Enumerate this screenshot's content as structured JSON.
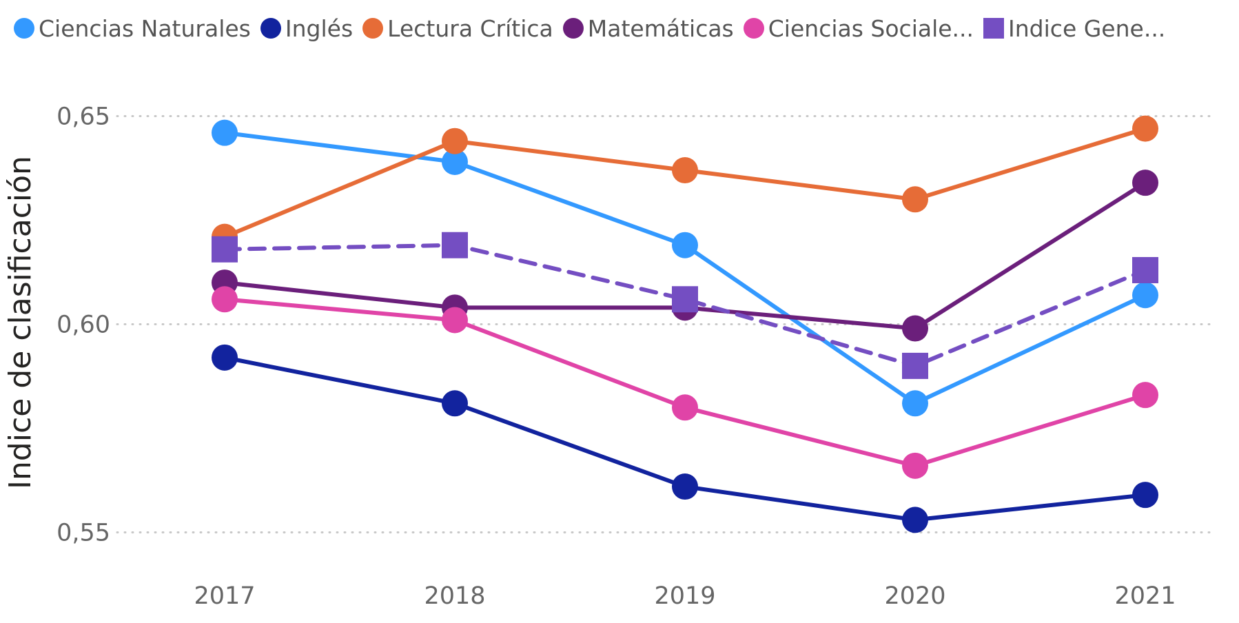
{
  "chart_data": {
    "type": "line",
    "categories": [
      "2017",
      "2018",
      "2019",
      "2020",
      "2021"
    ],
    "ylabel": "Indice de clasificación",
    "xlabel": "",
    "ylim": [
      0.54,
      0.66
    ],
    "yticks": [
      0.55,
      0.6,
      0.65
    ],
    "ytick_labels": [
      "0,55",
      "0,60",
      "0,65"
    ],
    "grid": "horizontal dotted",
    "legend_position": "top-left",
    "series": [
      {
        "name": "Ciencias Naturales",
        "color": "#3399FF",
        "marker": "circle",
        "dashed": false,
        "values": [
          0.646,
          0.639,
          0.619,
          0.581,
          0.607
        ]
      },
      {
        "name": "Inglés",
        "color": "#12239E",
        "marker": "circle",
        "dashed": false,
        "values": [
          0.592,
          0.581,
          0.561,
          0.553,
          0.559
        ]
      },
      {
        "name": "Lectura Crítica",
        "color": "#E66C37",
        "marker": "circle",
        "dashed": false,
        "values": [
          0.621,
          0.644,
          0.637,
          0.63,
          0.647
        ]
      },
      {
        "name": "Matemáticas",
        "color": "#6B1F7B",
        "marker": "circle",
        "dashed": false,
        "values": [
          0.61,
          0.604,
          0.604,
          0.599,
          0.634
        ]
      },
      {
        "name": "Ciencias Sociale...",
        "color": "#E044A7",
        "marker": "circle",
        "dashed": false,
        "values": [
          0.606,
          0.601,
          0.58,
          0.566,
          0.583
        ]
      },
      {
        "name": "Indice Gene...",
        "color": "#744EC2",
        "marker": "square",
        "dashed": true,
        "values": [
          0.618,
          0.619,
          0.606,
          0.59,
          0.613
        ]
      }
    ]
  }
}
